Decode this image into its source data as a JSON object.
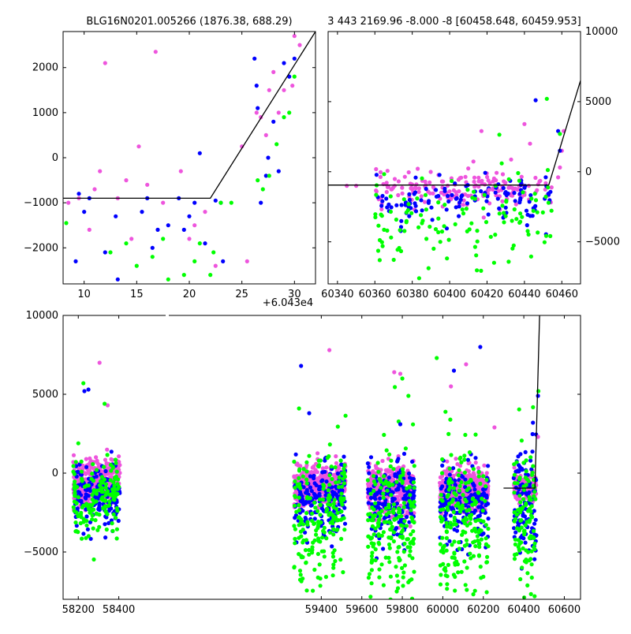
{
  "titles": {
    "left": "BLG16N0201.005266 (1876.38, 688.29)",
    "right": "3 443 2169.96 -8.000 -8 [60458.648, 60459.953]"
  },
  "offset_label": "+6.043e4",
  "colors": {
    "I": "#0000ff",
    "V": "#00ff00",
    "R": "#ee55dd",
    "model": "#000000"
  },
  "chart_data": [
    {
      "type": "scatter",
      "name": "zoom-left",
      "xlim": [
        8,
        32
      ],
      "ylim": [
        -2800,
        2800
      ],
      "xticks": [
        10,
        15,
        20,
        25,
        30
      ],
      "xtick_labels": [
        "10",
        "15",
        "20",
        "25",
        "30"
      ],
      "yticks": [
        -2000,
        -1000,
        0,
        1000,
        2000
      ],
      "ytick_labels": [
        "−2000",
        "−1000",
        "0",
        "1000",
        "2000"
      ],
      "model": {
        "x": [
          8,
          22,
          32
        ],
        "y": [
          -900,
          -900,
          2800
        ]
      },
      "series": [
        {
          "color": "I",
          "points": [
            [
              9.2,
              -2300
            ],
            [
              9.5,
              -800
            ],
            [
              10,
              -1200
            ],
            [
              10.5,
              -900
            ],
            [
              12,
              -2100
            ],
            [
              13,
              -1300
            ],
            [
              13.2,
              -2700
            ],
            [
              15.5,
              -1200
            ],
            [
              16,
              -900
            ],
            [
              16.5,
              -2000
            ],
            [
              17,
              -1600
            ],
            [
              18,
              -1500
            ],
            [
              19,
              -900
            ],
            [
              19.5,
              -1600
            ],
            [
              20,
              -1300
            ],
            [
              20.5,
              -1000
            ],
            [
              21,
              100
            ],
            [
              21.5,
              -1900
            ],
            [
              22.5,
              -950
            ],
            [
              23,
              -1000
            ],
            [
              23.2,
              -2300
            ],
            [
              26.2,
              2200
            ],
            [
              26.4,
              1600
            ],
            [
              26.5,
              1100
            ],
            [
              26.8,
              -1000
            ],
            [
              27.3,
              -400
            ],
            [
              27.5,
              0
            ],
            [
              28,
              800
            ],
            [
              28.5,
              -300
            ],
            [
              29,
              2100
            ],
            [
              29.5,
              1800
            ],
            [
              30,
              2200
            ]
          ]
        },
        {
          "color": "V",
          "points": [
            [
              8.3,
              -1450
            ],
            [
              12.5,
              -2100
            ],
            [
              14,
              -1900
            ],
            [
              15,
              -2400
            ],
            [
              16.5,
              -2200
            ],
            [
              17.5,
              -1800
            ],
            [
              18,
              -2700
            ],
            [
              19.5,
              -2600
            ],
            [
              20.5,
              -2300
            ],
            [
              21,
              -1900
            ],
            [
              22,
              -2600
            ],
            [
              22.3,
              -2100
            ],
            [
              23,
              -1000
            ],
            [
              24,
              -1000
            ],
            [
              26.5,
              -500
            ],
            [
              27,
              -700
            ],
            [
              27.6,
              -400
            ],
            [
              28.3,
              300
            ],
            [
              29,
              900
            ],
            [
              29.5,
              1000
            ],
            [
              30,
              1800
            ]
          ]
        },
        {
          "color": "R",
          "points": [
            [
              8.5,
              -1000
            ],
            [
              9.5,
              -900
            ],
            [
              10.5,
              -1600
            ],
            [
              11,
              -700
            ],
            [
              11.5,
              -300
            ],
            [
              12,
              2100
            ],
            [
              13.2,
              -900
            ],
            [
              14,
              -500
            ],
            [
              14.5,
              -1800
            ],
            [
              15.2,
              250
            ],
            [
              16,
              -600
            ],
            [
              16.8,
              2350
            ],
            [
              17.5,
              -1000
            ],
            [
              19.2,
              -300
            ],
            [
              20,
              -1800
            ],
            [
              20.5,
              -1500
            ],
            [
              21.5,
              -1200
            ],
            [
              22.5,
              -2400
            ],
            [
              25,
              250
            ],
            [
              25.5,
              -2300
            ],
            [
              26.4,
              1000
            ],
            [
              26.8,
              900
            ],
            [
              27.3,
              500
            ],
            [
              27.6,
              1500
            ],
            [
              28,
              1900
            ],
            [
              28.5,
              1000
            ],
            [
              29,
              1500
            ],
            [
              29.8,
              1600
            ],
            [
              30,
              2700
            ],
            [
              30.5,
              2500
            ]
          ]
        }
      ]
    },
    {
      "type": "scatter",
      "name": "zoom-right",
      "xlim": [
        60335,
        60470
      ],
      "ylim": [
        -8000,
        10000
      ],
      "xticks": [
        60340,
        60360,
        60380,
        60400,
        60420,
        60440,
        60460
      ],
      "xtick_labels": [
        "60340",
        "60360",
        "60380",
        "60400",
        "60420",
        "60440",
        "60460"
      ],
      "yticks": [
        -5000,
        0,
        5000,
        10000
      ],
      "ytick_labels": [
        "−5000",
        "0",
        "5000",
        "10000"
      ],
      "model": {
        "x": [
          60335,
          60453,
          60470
        ],
        "y": [
          -950,
          -950,
          6500
        ]
      },
      "segments": [
        {
          "x0": 60360,
          "x1": 60455,
          "ymean": -1300,
          "spread": 700,
          "density": 170,
          "color": "R",
          "seed": 11
        },
        {
          "x0": 60360,
          "x1": 60455,
          "ymean": -2100,
          "spread": 900,
          "density": 120,
          "color": "I",
          "seed": 12
        },
        {
          "x0": 60360,
          "x1": 60455,
          "ymean": -3400,
          "spread": 1700,
          "density": 120,
          "color": "V",
          "seed": 13
        }
      ],
      "series": [
        {
          "color": "R",
          "points": [
            [
              60345,
              -1000
            ],
            [
              60350,
              -1000
            ],
            [
              60417,
              2900
            ],
            [
              60421,
              -1300
            ],
            [
              60440,
              3400
            ],
            [
              60443,
              2000
            ],
            [
              60458,
              -400
            ],
            [
              60459,
              300
            ],
            [
              60460,
              1500
            ],
            [
              60461,
              2900
            ]
          ]
        },
        {
          "color": "I",
          "points": [
            [
              60446,
              5100
            ],
            [
              60458,
              2900
            ],
            [
              60459,
              1500
            ]
          ]
        },
        {
          "color": "V",
          "points": [
            [
              60395,
              -5000
            ],
            [
              60452,
              5200
            ],
            [
              60459,
              2700
            ]
          ]
        }
      ]
    },
    {
      "type": "scatter",
      "name": "full-lightcurve",
      "xlim": [
        58125,
        60680
      ],
      "ylim": [
        -8000,
        10000
      ],
      "xticks": [
        58200,
        58400,
        59400,
        59600,
        59800,
        60000,
        60200,
        60400,
        60600
      ],
      "xtick_labels": [
        "58200",
        "58400",
        "59400",
        "59600",
        "59800",
        "60000",
        "60200",
        "60400",
        "60600"
      ],
      "yticks": [
        -5000,
        0,
        5000,
        10000
      ],
      "ytick_labels": [
        "−5000",
        "0",
        "5000",
        "10000"
      ],
      "model": {
        "x": [
          60300,
          60455,
          60478
        ],
        "y": [
          -950,
          -950,
          10000
        ]
      },
      "segments": [
        {
          "x0": 58175,
          "x1": 58405,
          "ymean": -500,
          "spread": 650,
          "density": 380,
          "color": "R",
          "seed": 1
        },
        {
          "x0": 58175,
          "x1": 58405,
          "ymean": -1300,
          "spread": 900,
          "density": 160,
          "color": "I",
          "seed": 2
        },
        {
          "x0": 58175,
          "x1": 58405,
          "ymean": -1700,
          "spread": 1300,
          "density": 160,
          "color": "V",
          "seed": 3
        },
        {
          "x0": 59265,
          "x1": 59520,
          "ymean": -800,
          "spread": 600,
          "density": 400,
          "color": "R",
          "seed": 4
        },
        {
          "x0": 59265,
          "x1": 59520,
          "ymean": -1600,
          "spread": 1200,
          "density": 180,
          "color": "I",
          "seed": 5
        },
        {
          "x0": 59265,
          "x1": 59520,
          "ymean": -3000,
          "spread": 2300,
          "density": 200,
          "color": "V",
          "seed": 6
        },
        {
          "x0": 59630,
          "x1": 59860,
          "ymean": -1100,
          "spread": 700,
          "density": 400,
          "color": "R",
          "seed": 7
        },
        {
          "x0": 59630,
          "x1": 59860,
          "ymean": -1700,
          "spread": 1300,
          "density": 170,
          "color": "I",
          "seed": 8
        },
        {
          "x0": 59630,
          "x1": 59860,
          "ymean": -3000,
          "spread": 2300,
          "density": 200,
          "color": "V",
          "seed": 9
        },
        {
          "x0": 59985,
          "x1": 60225,
          "ymean": -1100,
          "spread": 700,
          "density": 400,
          "color": "R",
          "seed": 10
        },
        {
          "x0": 59985,
          "x1": 60225,
          "ymean": -1900,
          "spread": 1300,
          "density": 170,
          "color": "I",
          "seed": 14
        },
        {
          "x0": 59985,
          "x1": 60225,
          "ymean": -3300,
          "spread": 2300,
          "density": 200,
          "color": "V",
          "seed": 15
        },
        {
          "x0": 60350,
          "x1": 60462,
          "ymean": -900,
          "spread": 500,
          "density": 140,
          "color": "R",
          "seed": 16
        },
        {
          "x0": 60350,
          "x1": 60462,
          "ymean": -2200,
          "spread": 1800,
          "density": 110,
          "color": "I",
          "seed": 17
        },
        {
          "x0": 60350,
          "x1": 60462,
          "ymean": -3000,
          "spread": 2400,
          "density": 110,
          "color": "V",
          "seed": 18
        }
      ],
      "series": [
        {
          "color": "R",
          "points": [
            [
              58305,
              7000
            ],
            [
              58345,
              4300
            ],
            [
              59440,
              7800
            ],
            [
              59760,
              6400
            ],
            [
              59790,
              6300
            ],
            [
              60115,
              6900
            ],
            [
              60040,
              5500
            ],
            [
              60255,
              2900
            ],
            [
              60470,
              2300
            ]
          ]
        },
        {
          "color": "I",
          "points": [
            [
              58250,
              5300
            ],
            [
              58230,
              5200
            ],
            [
              59300,
              6800
            ],
            [
              59340,
              3800
            ],
            [
              59790,
              3100
            ],
            [
              60055,
              6500
            ],
            [
              60185,
              8000
            ],
            [
              60445,
              3200
            ],
            [
              60470,
              4900
            ]
          ]
        },
        {
          "color": "V",
          "points": [
            [
              58225,
              5700
            ],
            [
              58330,
              4400
            ],
            [
              59290,
              4100
            ],
            [
              59800,
              6000
            ],
            [
              59830,
              4900
            ],
            [
              59970,
              7300
            ],
            [
              60472,
              5200
            ]
          ]
        }
      ]
    }
  ]
}
